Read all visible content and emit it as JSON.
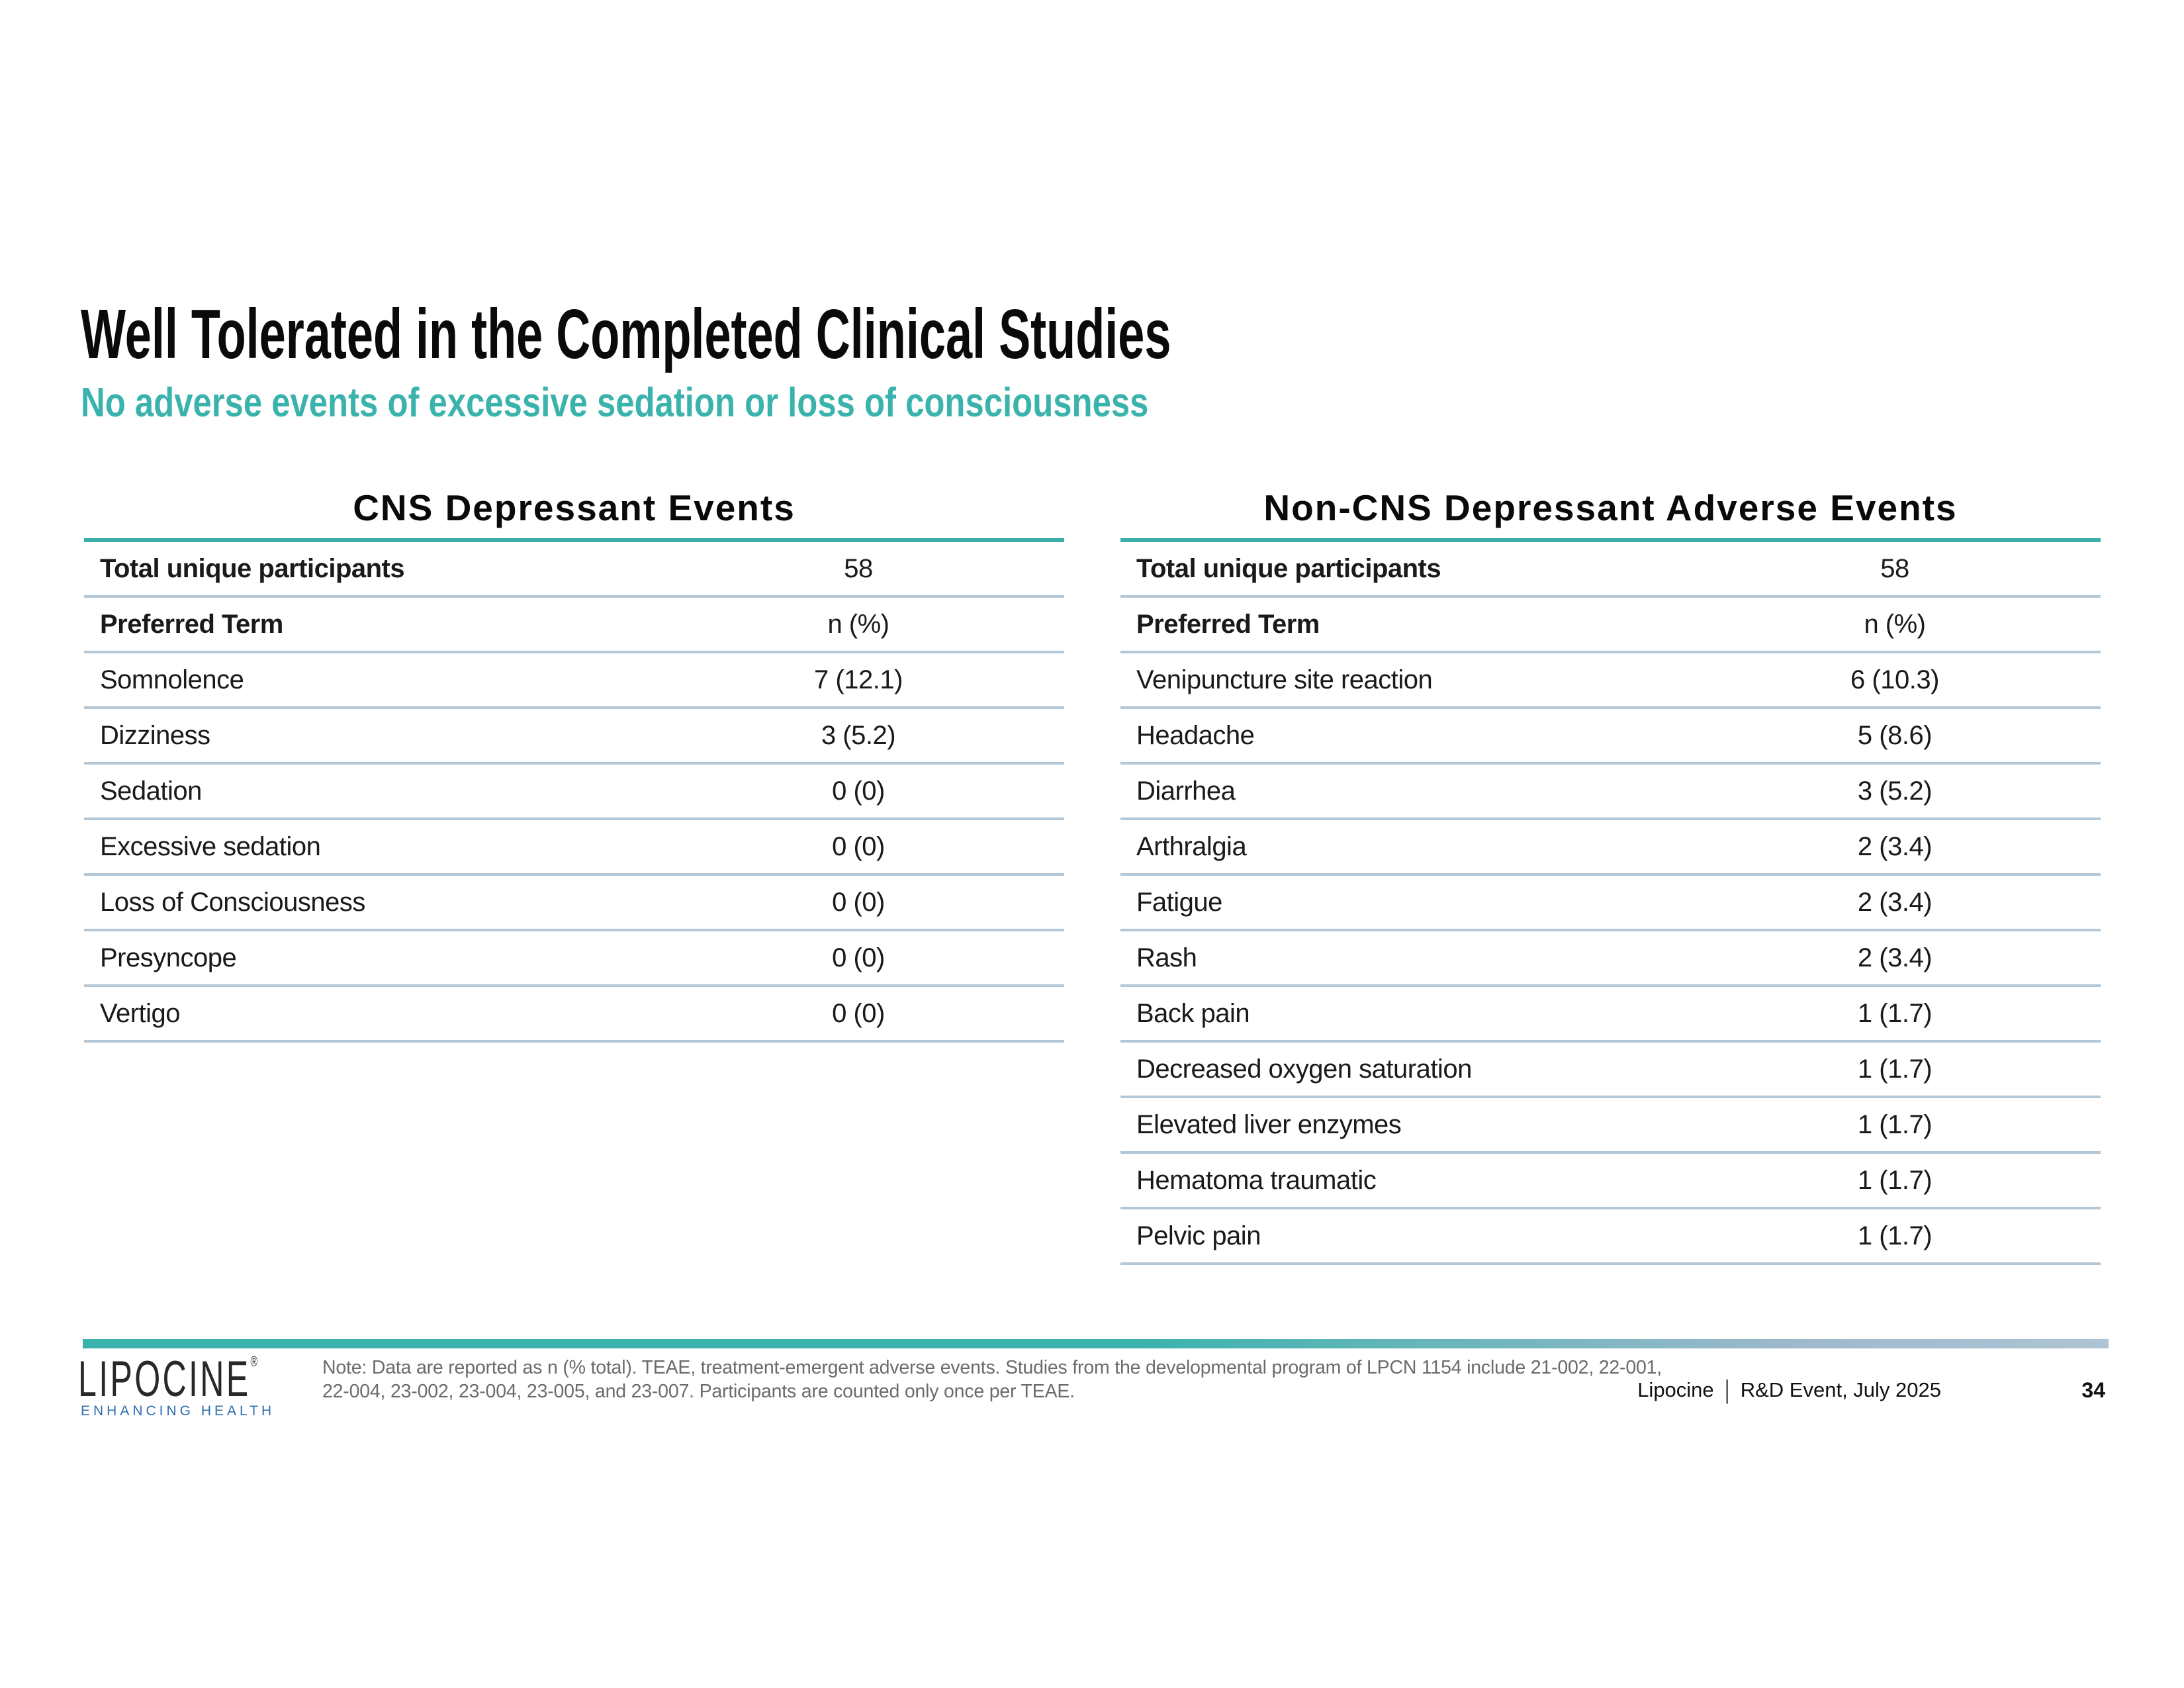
{
  "slide": {
    "title": "Well Tolerated in the Completed Clinical Studies",
    "subtitle": "No adverse events of excessive sedation or loss of consciousness"
  },
  "tables": [
    {
      "title": "CNS Depressant Events",
      "rows": [
        {
          "label": "Total unique participants",
          "value": "58",
          "bold": true
        },
        {
          "label": "Preferred Term",
          "value": "n (%)",
          "bold": true
        },
        {
          "label": "Somnolence",
          "value": "7 (12.1)",
          "bold": false
        },
        {
          "label": "Dizziness",
          "value": "3 (5.2)",
          "bold": false
        },
        {
          "label": "Sedation",
          "value": "0 (0)",
          "bold": false
        },
        {
          "label": "Excessive sedation",
          "value": "0 (0)",
          "bold": false
        },
        {
          "label": "Loss of Consciousness",
          "value": "0 (0)",
          "bold": false
        },
        {
          "label": "Presyncope",
          "value": "0 (0)",
          "bold": false
        },
        {
          "label": "Vertigo",
          "value": "0 (0)",
          "bold": false
        }
      ]
    },
    {
      "title": "Non-CNS Depressant Adverse Events",
      "rows": [
        {
          "label": "Total unique participants",
          "value": "58",
          "bold": true
        },
        {
          "label": "Preferred Term",
          "value": "n (%)",
          "bold": true
        },
        {
          "label": "Venipuncture site reaction",
          "value": "6 (10.3)",
          "bold": false
        },
        {
          "label": "Headache",
          "value": "5 (8.6)",
          "bold": false
        },
        {
          "label": "Diarrhea",
          "value": "3 (5.2)",
          "bold": false
        },
        {
          "label": "Arthralgia",
          "value": "2 (3.4)",
          "bold": false
        },
        {
          "label": "Fatigue",
          "value": "2 (3.4)",
          "bold": false
        },
        {
          "label": "Rash",
          "value": "2 (3.4)",
          "bold": false
        },
        {
          "label": "Back pain",
          "value": "1 (1.7)",
          "bold": false
        },
        {
          "label": "Decreased oxygen saturation",
          "value": "1 (1.7)",
          "bold": false
        },
        {
          "label": "Elevated liver enzymes",
          "value": "1 (1.7)",
          "bold": false
        },
        {
          "label": "Hematoma traumatic",
          "value": "1 (1.7)",
          "bold": false
        },
        {
          "label": "Pelvic pain",
          "value": "1 (1.7)",
          "bold": false
        }
      ]
    }
  ],
  "footer": {
    "logo_text": "LIPOCINE",
    "logo_registered": "®",
    "logo_tagline": "ENHANCING HEALTH",
    "note_lines": [
      "Note: Data are reported as n (% total). TEAE, treatment-emergent adverse events. Studies from the developmental program of LPCN 1154 include 21-002, 22-001,",
      "22-004, 23-002, 23-004, 23-005, and 23-007. Participants are counted only once per TEAE."
    ],
    "credit_left": "Lipocine",
    "credit_separator": "|",
    "credit_right": "R&D Event, July 2025",
    "page_number": "34"
  },
  "colors": {
    "accent_teal": "#3BB3AD",
    "table_border_teal": "#3AAEA8",
    "row_separator": "#B4C7D7",
    "bar_gradient_end": "#AEC4D4",
    "logo_blue": "#2E6FAE",
    "note_gray": "#6A6B6E"
  }
}
